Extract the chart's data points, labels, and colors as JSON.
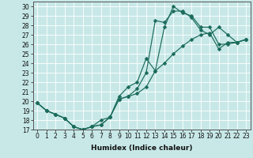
{
  "xlabel": "Humidex (Indice chaleur)",
  "bg_color": "#c8e8e8",
  "line_color": "#1a6b5a",
  "grid_color": "#ffffff",
  "xlim": [
    -0.5,
    23.5
  ],
  "ylim": [
    17,
    30.5
  ],
  "xticks": [
    0,
    1,
    2,
    3,
    4,
    5,
    6,
    7,
    8,
    9,
    10,
    11,
    12,
    13,
    14,
    15,
    16,
    17,
    18,
    19,
    20,
    21,
    22,
    23
  ],
  "yticks": [
    17,
    18,
    19,
    20,
    21,
    22,
    23,
    24,
    25,
    26,
    27,
    28,
    29,
    30
  ],
  "line1_x": [
    0,
    1,
    2,
    3,
    4,
    5,
    6,
    7,
    8,
    9,
    10,
    11,
    12,
    13,
    14,
    15,
    16,
    17,
    18,
    19,
    20,
    21,
    22,
    23
  ],
  "line1_y": [
    19.8,
    19.0,
    18.6,
    18.2,
    17.3,
    17.0,
    17.3,
    17.5,
    18.3,
    20.2,
    20.5,
    20.8,
    21.5,
    23.2,
    24.0,
    25.0,
    25.8,
    26.5,
    27.0,
    27.2,
    25.5,
    26.2,
    26.2,
    26.5
  ],
  "line2_x": [
    0,
    1,
    2,
    3,
    4,
    5,
    6,
    7,
    8,
    9,
    10,
    11,
    12,
    13,
    14,
    15,
    16,
    17,
    18,
    19,
    20,
    21,
    22,
    23
  ],
  "line2_y": [
    19.8,
    19.0,
    18.6,
    18.2,
    17.3,
    17.0,
    17.3,
    17.5,
    18.3,
    20.2,
    20.5,
    21.3,
    23.0,
    28.5,
    28.3,
    29.5,
    29.5,
    28.8,
    27.5,
    27.0,
    27.8,
    27.0,
    26.2,
    26.5
  ],
  "line3_x": [
    0,
    1,
    2,
    3,
    4,
    5,
    6,
    7,
    8,
    9,
    10,
    11,
    12,
    13,
    14,
    15,
    16,
    17,
    18,
    19,
    20,
    21,
    22,
    23
  ],
  "line3_y": [
    19.8,
    19.0,
    18.6,
    18.2,
    17.3,
    17.0,
    17.3,
    18.0,
    18.3,
    20.5,
    21.5,
    22.0,
    24.5,
    23.2,
    27.8,
    30.0,
    29.3,
    29.0,
    27.8,
    27.8,
    26.0,
    26.0,
    26.2,
    26.5
  ],
  "tick_fontsize": 5.5,
  "xlabel_fontsize": 6.5,
  "lw": 0.85,
  "ms": 2.5
}
